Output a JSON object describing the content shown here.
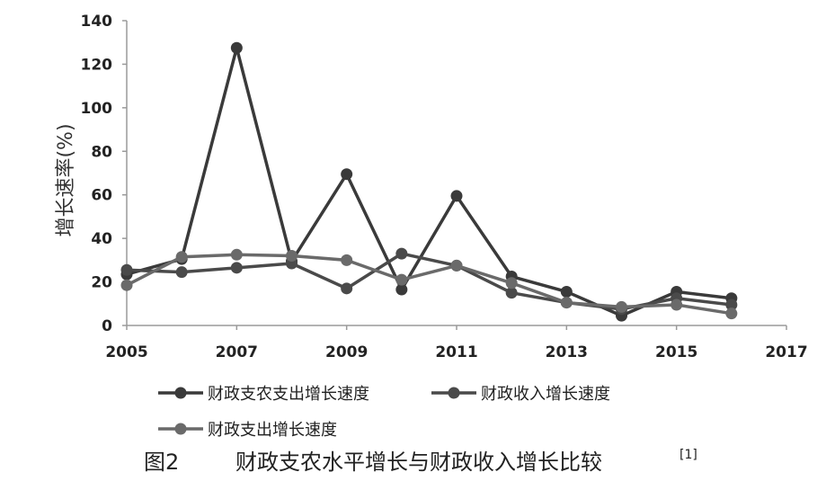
{
  "chart_data": {
    "type": "line",
    "title": "",
    "ylabel": "增长速率(%)",
    "xlabel": "",
    "xlim": [
      2005,
      2017
    ],
    "ylim": [
      0,
      140
    ],
    "x_ticks": [
      "2005",
      "2007",
      "2009",
      "2011",
      "2013",
      "2015",
      "2017"
    ],
    "y_ticks": [
      "0",
      "20",
      "40",
      "60",
      "80",
      "100",
      "120",
      "140"
    ],
    "grid": false,
    "legend_position": "bottom",
    "x": [
      2005,
      2006,
      2007,
      2008,
      2009,
      2010,
      2011,
      2012,
      2013,
      2014,
      2015,
      2016
    ],
    "series": [
      {
        "name": "财政支农支出增长速度",
        "color": "#3a3a3a",
        "values": [
          23.5,
          30.5,
          127.5,
          29.5,
          69.5,
          16.5,
          59.5,
          22.5,
          15.5,
          4.5,
          15.5,
          12.5
        ]
      },
      {
        "name": "财政收入增长速度",
        "color": "#4a4a4a",
        "values": [
          25.5,
          24.5,
          26.5,
          28.5,
          17,
          33,
          27.5,
          15,
          10.5,
          7.5,
          12.5,
          9.5
        ]
      },
      {
        "name": "财政支出增长速度",
        "color": "#6a6a6a",
        "values": [
          18.5,
          31.5,
          32.5,
          32,
          30,
          21,
          27.5,
          19.5,
          10.5,
          8.5,
          9.5,
          5.5
        ]
      }
    ],
    "caption": {
      "prefix": "图2",
      "text": "财政支农水平增长与财政收入增长比较",
      "ref": "[1]"
    }
  }
}
